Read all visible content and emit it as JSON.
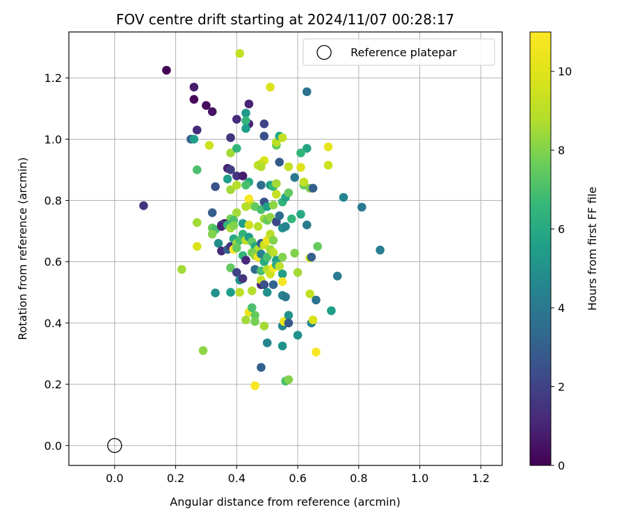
{
  "chart_data": {
    "type": "scatter",
    "title": "FOV centre drift starting at 2024/11/07 00:28:17",
    "xlabel": "Angular distance from reference (arcmin)",
    "ylabel": "Rotation from reference (arcmin)",
    "xlim": [
      -0.15,
      1.27
    ],
    "ylim": [
      -0.065,
      1.35
    ],
    "x_ticks": [
      0.0,
      0.2,
      0.4,
      0.6,
      0.8,
      1.0,
      1.2
    ],
    "y_ticks": [
      0.0,
      0.2,
      0.4,
      0.6,
      0.8,
      1.0,
      1.2
    ],
    "grid": true,
    "legend": {
      "placement": "top-right",
      "entries": [
        {
          "label": "Reference platepar",
          "marker": "open-circle"
        }
      ]
    },
    "colorbar": {
      "label": "Hours from first FF file",
      "colormap": "viridis",
      "range": [
        0,
        11
      ],
      "ticks": [
        0,
        2,
        4,
        6,
        8,
        10
      ]
    },
    "reference_point": {
      "x": 0.0,
      "y": 0.0
    },
    "points": [
      [
        0.17,
        1.225,
        0.1
      ],
      [
        0.26,
        1.17,
        0.8
      ],
      [
        0.26,
        1.13,
        0.2
      ],
      [
        0.3,
        1.11,
        0.3
      ],
      [
        0.32,
        1.09,
        0.5
      ],
      [
        0.27,
        1.03,
        1.2
      ],
      [
        0.25,
        1.0,
        3.0
      ],
      [
        0.26,
        1.0,
        5.5
      ],
      [
        0.095,
        0.783,
        1.5
      ],
      [
        0.41,
        1.28,
        9.2
      ],
      [
        0.51,
        1.17,
        9.8
      ],
      [
        0.63,
        1.155,
        3.8
      ],
      [
        0.44,
        1.115,
        1.0
      ],
      [
        0.43,
        1.085,
        5.3
      ],
      [
        0.4,
        1.065,
        1.2
      ],
      [
        0.44,
        1.05,
        1.0
      ],
      [
        0.43,
        1.06,
        6.5
      ],
      [
        0.43,
        1.035,
        5.5
      ],
      [
        0.49,
        1.05,
        2.0
      ],
      [
        0.49,
        1.01,
        2.5
      ],
      [
        0.38,
        1.005,
        1.5
      ],
      [
        0.53,
        0.98,
        7.5
      ],
      [
        0.53,
        0.99,
        9.0
      ],
      [
        0.54,
        1.01,
        5.8
      ],
      [
        0.55,
        1.005,
        9.2
      ],
      [
        0.31,
        0.98,
        9.5
      ],
      [
        0.38,
        0.955,
        8.5
      ],
      [
        0.4,
        0.97,
        6.5
      ],
      [
        0.63,
        0.97,
        5.8
      ],
      [
        0.61,
        0.955,
        6.5
      ],
      [
        0.7,
        0.975,
        10.2
      ],
      [
        0.7,
        0.915,
        9.5
      ],
      [
        0.54,
        0.925,
        2.8
      ],
      [
        0.49,
        0.93,
        9.8
      ],
      [
        0.48,
        0.92,
        9.5
      ],
      [
        0.47,
        0.915,
        9.0
      ],
      [
        0.48,
        0.91,
        8.8
      ],
      [
        0.57,
        0.91,
        9.2
      ],
      [
        0.61,
        0.908,
        10.0
      ],
      [
        0.27,
        0.9,
        7.0
      ],
      [
        0.37,
        0.905,
        1.0
      ],
      [
        0.38,
        0.9,
        1.8
      ],
      [
        0.4,
        0.88,
        1.5
      ],
      [
        0.42,
        0.88,
        0.8
      ],
      [
        0.44,
        0.86,
        6.0
      ],
      [
        0.33,
        0.845,
        2.5
      ],
      [
        0.37,
        0.87,
        5.5
      ],
      [
        0.38,
        0.835,
        8.5
      ],
      [
        0.4,
        0.85,
        8.8
      ],
      [
        0.43,
        0.85,
        7.0
      ],
      [
        0.48,
        0.85,
        3.5
      ],
      [
        0.51,
        0.85,
        5.5
      ],
      [
        0.52,
        0.845,
        6.5
      ],
      [
        0.53,
        0.855,
        8.5
      ],
      [
        0.59,
        0.875,
        4.0
      ],
      [
        0.62,
        0.85,
        7.5
      ],
      [
        0.62,
        0.86,
        9.2
      ],
      [
        0.64,
        0.84,
        8.0
      ],
      [
        0.65,
        0.84,
        3.0
      ],
      [
        0.75,
        0.81,
        4.5
      ],
      [
        0.81,
        0.778,
        4.0
      ],
      [
        0.87,
        0.638,
        4.2
      ],
      [
        0.73,
        0.553,
        4.0
      ],
      [
        0.44,
        0.805,
        10.8
      ],
      [
        0.45,
        0.785,
        9.5
      ],
      [
        0.43,
        0.78,
        8.8
      ],
      [
        0.46,
        0.78,
        7.5
      ],
      [
        0.48,
        0.77,
        7.0
      ],
      [
        0.49,
        0.795,
        2.5
      ],
      [
        0.5,
        0.78,
        5.5
      ],
      [
        0.52,
        0.785,
        8.2
      ],
      [
        0.53,
        0.82,
        9.2
      ],
      [
        0.55,
        0.795,
        6.5
      ],
      [
        0.56,
        0.81,
        5.8
      ],
      [
        0.57,
        0.825,
        7.5
      ],
      [
        0.32,
        0.76,
        3.0
      ],
      [
        0.4,
        0.76,
        8.5
      ],
      [
        0.38,
        0.74,
        7.8
      ],
      [
        0.39,
        0.735,
        7.0
      ],
      [
        0.36,
        0.725,
        0.5
      ],
      [
        0.35,
        0.72,
        2.0
      ],
      [
        0.27,
        0.728,
        8.5
      ],
      [
        0.32,
        0.71,
        7.5
      ],
      [
        0.33,
        0.705,
        7.0
      ],
      [
        0.35,
        0.715,
        1.0
      ],
      [
        0.37,
        0.72,
        6.5
      ],
      [
        0.38,
        0.71,
        8.5
      ],
      [
        0.39,
        0.718,
        8.0
      ],
      [
        0.42,
        0.725,
        5.5
      ],
      [
        0.44,
        0.72,
        9.5
      ],
      [
        0.47,
        0.715,
        8.8
      ],
      [
        0.49,
        0.74,
        8.5
      ],
      [
        0.5,
        0.735,
        7.5
      ],
      [
        0.51,
        0.745,
        8.2
      ],
      [
        0.53,
        0.73,
        2.2
      ],
      [
        0.54,
        0.75,
        3.5
      ],
      [
        0.55,
        0.71,
        5.0
      ],
      [
        0.56,
        0.715,
        4.5
      ],
      [
        0.58,
        0.74,
        6.5
      ],
      [
        0.61,
        0.755,
        6.0
      ],
      [
        0.63,
        0.72,
        4.2
      ],
      [
        0.32,
        0.69,
        8.0
      ],
      [
        0.34,
        0.66,
        4.8
      ],
      [
        0.35,
        0.635,
        1.2
      ],
      [
        0.37,
        0.64,
        3.0
      ],
      [
        0.38,
        0.65,
        1.5
      ],
      [
        0.39,
        0.675,
        6.0
      ],
      [
        0.4,
        0.66,
        8.5
      ],
      [
        0.41,
        0.67,
        7.0
      ],
      [
        0.42,
        0.69,
        6.5
      ],
      [
        0.43,
        0.67,
        9.0
      ],
      [
        0.44,
        0.68,
        5.5
      ],
      [
        0.45,
        0.665,
        7.5
      ],
      [
        0.46,
        0.65,
        6.0
      ],
      [
        0.47,
        0.64,
        8.8
      ],
      [
        0.48,
        0.66,
        3.0
      ],
      [
        0.49,
        0.655,
        9.5
      ],
      [
        0.5,
        0.67,
        10.5
      ],
      [
        0.51,
        0.69,
        9.0
      ],
      [
        0.52,
        0.67,
        8.0
      ],
      [
        0.27,
        0.65,
        9.8
      ],
      [
        0.39,
        0.64,
        10.8
      ],
      [
        0.4,
        0.645,
        7.5
      ],
      [
        0.42,
        0.62,
        6.5
      ],
      [
        0.43,
        0.605,
        1.2
      ],
      [
        0.45,
        0.63,
        7.8
      ],
      [
        0.46,
        0.62,
        8.2
      ],
      [
        0.47,
        0.615,
        10.5
      ],
      [
        0.48,
        0.625,
        4.5
      ],
      [
        0.49,
        0.6,
        6.0
      ],
      [
        0.5,
        0.615,
        7.0
      ],
      [
        0.51,
        0.64,
        8.5
      ],
      [
        0.52,
        0.63,
        9.0
      ],
      [
        0.53,
        0.605,
        5.5
      ],
      [
        0.55,
        0.615,
        8.0
      ],
      [
        0.59,
        0.628,
        8.0
      ],
      [
        0.64,
        0.612,
        9.8
      ],
      [
        0.645,
        0.615,
        3.0
      ],
      [
        0.665,
        0.65,
        7.5
      ],
      [
        0.22,
        0.575,
        8.5
      ],
      [
        0.38,
        0.58,
        7.5
      ],
      [
        0.4,
        0.565,
        2.0
      ],
      [
        0.41,
        0.54,
        5.0
      ],
      [
        0.42,
        0.545,
        1.5
      ],
      [
        0.46,
        0.575,
        3.5
      ],
      [
        0.48,
        0.57,
        7.0
      ],
      [
        0.5,
        0.575,
        8.8
      ],
      [
        0.51,
        0.56,
        9.5
      ],
      [
        0.52,
        0.58,
        10.8
      ],
      [
        0.53,
        0.59,
        6.0
      ],
      [
        0.54,
        0.585,
        9.0
      ],
      [
        0.55,
        0.56,
        5.5
      ],
      [
        0.6,
        0.565,
        8.5
      ],
      [
        0.45,
        0.505,
        8.8
      ],
      [
        0.48,
        0.525,
        1.0
      ],
      [
        0.48,
        0.54,
        9.2
      ],
      [
        0.49,
        0.525,
        2.5
      ],
      [
        0.5,
        0.5,
        5.0
      ],
      [
        0.52,
        0.525,
        3.2
      ],
      [
        0.55,
        0.535,
        10.8
      ],
      [
        0.55,
        0.49,
        4.5
      ],
      [
        0.56,
        0.485,
        4.0
      ],
      [
        0.64,
        0.495,
        9.2
      ],
      [
        0.66,
        0.475,
        3.8
      ],
      [
        0.71,
        0.44,
        5.5
      ],
      [
        0.33,
        0.498,
        5.0
      ],
      [
        0.38,
        0.5,
        5.5
      ],
      [
        0.41,
        0.5,
        9.0
      ],
      [
        0.44,
        0.435,
        10.5
      ],
      [
        0.45,
        0.45,
        7.0
      ],
      [
        0.46,
        0.425,
        7.5
      ],
      [
        0.43,
        0.41,
        8.5
      ],
      [
        0.46,
        0.405,
        7.8
      ],
      [
        0.49,
        0.39,
        8.5
      ],
      [
        0.55,
        0.39,
        4.5
      ],
      [
        0.555,
        0.405,
        10.5
      ],
      [
        0.57,
        0.425,
        5.0
      ],
      [
        0.57,
        0.4,
        2.8
      ],
      [
        0.645,
        0.4,
        4.5
      ],
      [
        0.65,
        0.41,
        9.8
      ],
      [
        0.29,
        0.31,
        8.2
      ],
      [
        0.48,
        0.255,
        3.0
      ],
      [
        0.5,
        0.335,
        4.5
      ],
      [
        0.55,
        0.325,
        5.0
      ],
      [
        0.6,
        0.36,
        5.0
      ],
      [
        0.66,
        0.305,
        10.8
      ],
      [
        0.56,
        0.21,
        7.0
      ],
      [
        0.57,
        0.215,
        8.0
      ],
      [
        0.46,
        0.195,
        10.8
      ]
    ]
  }
}
